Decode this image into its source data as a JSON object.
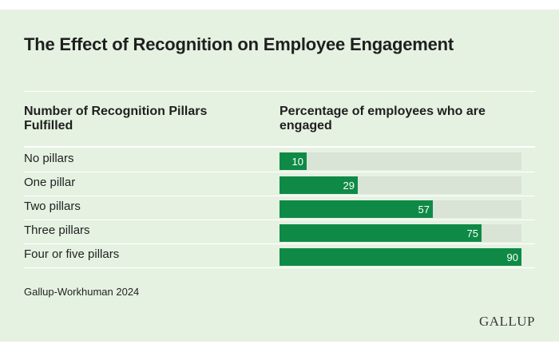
{
  "title": "The Effect of Recognition on Employee Engagement",
  "left_header": "Number of Recognition Pillars Fulfilled",
  "right_header": "Percentage of employees who are engaged",
  "source": "Gallup-Workhuman 2024",
  "logo": "GALLUP",
  "colors": {
    "background": "#e5f2e2",
    "bar": "#0f8a46",
    "track": "#d9e3d6"
  },
  "chart_data": {
    "type": "bar",
    "orientation": "horizontal",
    "title": "The Effect of Recognition on Employee Engagement",
    "categories": [
      "No pillars",
      "One pillar",
      "Two pillars",
      "Three pillars",
      "Four or five pillars"
    ],
    "values": [
      10,
      29,
      57,
      75,
      90
    ],
    "xlim": [
      0,
      90
    ],
    "grid": false
  }
}
